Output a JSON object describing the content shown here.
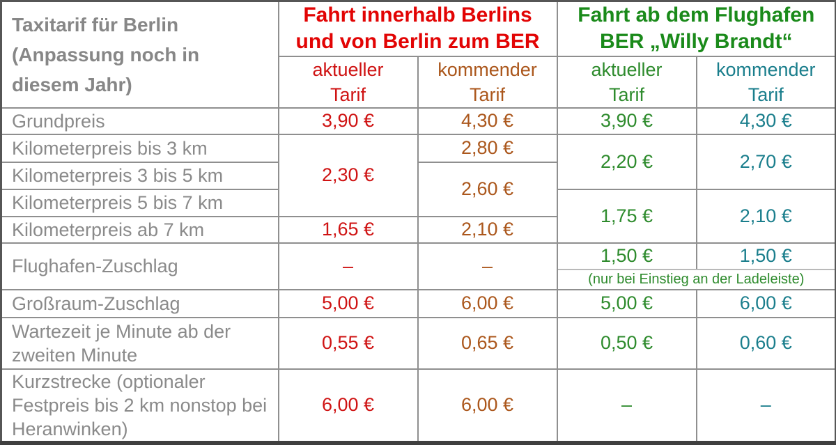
{
  "colors": {
    "red_header": "#e20404",
    "red_value": "#cf1313",
    "brown_value": "#ab571c",
    "green_header": "#1a8a1a",
    "green_value": "#2e8b2d",
    "teal_value": "#1a7e8c",
    "label_gray": "#8a8a8a",
    "border_gray": "#8f8f8f"
  },
  "header": {
    "corner_lines": [
      "Taxitarif für Berlin",
      "(Anpassung noch in",
      "diesem Jahr)"
    ],
    "group1": {
      "line1": "Fahrt innerhalb Berlins",
      "line2": "und von Berlin zum BER"
    },
    "group2": {
      "line1": "Fahrt ab dem Flughafen",
      "line2": "BER „Willy Brandt“"
    },
    "subheaders": [
      {
        "line1": "aktueller",
        "line2": "Tarif"
      },
      {
        "line1": "kommender",
        "line2": "Tarif"
      },
      {
        "line1": "aktueller",
        "line2": "Tarif"
      },
      {
        "line1": "kommender",
        "line2": "Tarif"
      }
    ]
  },
  "rows": {
    "grundpreis": {
      "label": "Grundpreis",
      "v1": "3,90 €",
      "v2": "4,30 €",
      "v3": "3,90 €",
      "v4": "4,30 €"
    },
    "km_bis3": {
      "label": "Kilometerpreis bis 3 km",
      "v2": "2,80 €"
    },
    "km_3bis5": {
      "label": "Kilometerpreis 3 bis 5 km"
    },
    "km_5bis7": {
      "label": "Kilometerpreis 5 bis 7 km"
    },
    "km_ab7": {
      "label": "Kilometerpreis ab 7 km",
      "v1": "1,65 €",
      "v2": "2,10 €"
    },
    "km_merged": {
      "red_span3": "2,30 €",
      "brown_span2": "2,60 €",
      "green_span2_top": "2,20 €",
      "teal_span2_top": "2,70 €",
      "green_span2_bottom": "1,75 €",
      "teal_span2_bottom": "2,10 €"
    },
    "flughafen": {
      "label": "Flughafen-Zuschlag",
      "v1": "–",
      "v2": "–",
      "v3": "1,50 €",
      "v4": "1,50 €",
      "note": "(nur bei Einstieg an der Ladeleiste)"
    },
    "grossraum": {
      "label": "Großraum-Zuschlag",
      "v1": "5,00 €",
      "v2": "6,00 €",
      "v3": "5,00 €",
      "v4": "6,00 €"
    },
    "wartezeit": {
      "label": "Wartezeit je Minute ab der zweiten Minute",
      "v1": "0,55 €",
      "v2": "0,65 €",
      "v3": "0,50 €",
      "v4": "0,60 €"
    },
    "kurzstrecke": {
      "label_main": "Kurzstrecke",
      "label_note": "(optionaler Festpreis bis 2 km nonstop bei Heranwinken)",
      "v1": "6,00 €",
      "v2": "6,00 €",
      "v3": "–",
      "v4": "–"
    }
  },
  "chart_data": {
    "type": "table",
    "title": "Taxitarif für Berlin (Anpassung noch in diesem Jahr)",
    "column_groups": [
      "Fahrt innerhalb Berlins und von Berlin zum BER",
      "Fahrt ab dem Flughafen BER „Willy Brandt“"
    ],
    "columns": [
      "aktueller Tarif (innerhalb Berlins)",
      "kommender Tarif (innerhalb Berlins)",
      "aktueller Tarif (ab Flughafen BER)",
      "kommender Tarif (ab Flughafen BER)"
    ],
    "rows": [
      {
        "label": "Grundpreis",
        "values": [
          "3,90 €",
          "4,30 €",
          "3,90 €",
          "4,30 €"
        ]
      },
      {
        "label": "Kilometerpreis bis 3 km",
        "values": [
          "2,30 €",
          "2,80 €",
          "2,20 €",
          "2,70 €"
        ]
      },
      {
        "label": "Kilometerpreis 3 bis 5 km",
        "values": [
          "2,30 €",
          "2,60 €",
          "2,20 €",
          "2,70 €"
        ]
      },
      {
        "label": "Kilometerpreis 5 bis 7 km",
        "values": [
          "2,30 €",
          "2,60 €",
          "1,75 €",
          "2,10 €"
        ]
      },
      {
        "label": "Kilometerpreis ab 7 km",
        "values": [
          "1,65 €",
          "2,10 €",
          "1,75 €",
          "2,10 €"
        ]
      },
      {
        "label": "Flughafen-Zuschlag",
        "values": [
          "–",
          "–",
          "1,50 €",
          "1,50 €"
        ],
        "note": "(nur bei Einstieg an der Ladeleiste)"
      },
      {
        "label": "Großraum-Zuschlag",
        "values": [
          "5,00 €",
          "6,00 €",
          "5,00 €",
          "6,00 €"
        ]
      },
      {
        "label": "Wartezeit je Minute ab der zweiten Minute",
        "values": [
          "0,55 €",
          "0,65 €",
          "0,50 €",
          "0,60 €"
        ]
      },
      {
        "label": "Kurzstrecke (optionaler Festpreis bis 2 km nonstop bei Heranwinken)",
        "values": [
          "6,00 €",
          "6,00 €",
          "–",
          "–"
        ]
      }
    ]
  }
}
